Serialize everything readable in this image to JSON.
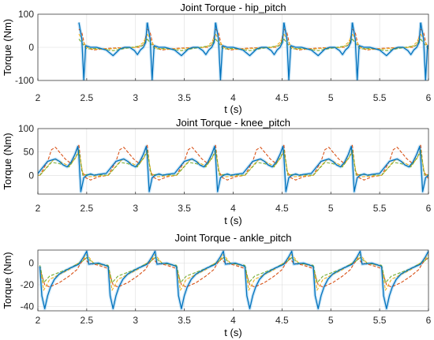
{
  "chart_data": [
    {
      "type": "line",
      "title": "Joint Torque - hip_pitch",
      "xlabel": "t (s)",
      "ylabel": "Torque (Nm)",
      "xlim": [
        2,
        6
      ],
      "ylim": [
        -100,
        100
      ],
      "xticks": [
        "2",
        "2.5",
        "3",
        "3.5",
        "4",
        "4.5",
        "5",
        "5.5",
        "6"
      ],
      "yticks": [
        "-100",
        "0",
        "100"
      ],
      "grid": true,
      "gait_period_s": 0.7,
      "stance_start_s": [
        2.42,
        3.12,
        3.82,
        4.52,
        5.22,
        5.92
      ],
      "series": [
        {
          "color": "#0072BD",
          "style": "solid",
          "x": [
            0.0,
            0.03,
            0.05,
            0.07,
            0.12,
            0.18,
            0.28,
            0.35,
            0.42,
            0.47,
            0.52,
            0.57,
            0.6,
            0.63,
            0.66,
            0.685,
            0.7
          ],
          "y": [
            75,
            25,
            -98,
            5,
            0,
            0,
            -8,
            -25,
            -5,
            0,
            0,
            -10,
            -22,
            -8,
            0,
            15,
            75
          ]
        },
        {
          "color": "#D95319",
          "style": "dashed",
          "x": [
            0.0,
            0.03,
            0.06,
            0.1,
            0.15,
            0.3,
            0.45,
            0.62,
            0.67,
            0.7
          ],
          "y": [
            55,
            45,
            5,
            -3,
            -8,
            -3,
            -1,
            0,
            10,
            55
          ]
        },
        {
          "color": "#EDB120",
          "style": "dashed",
          "x": [
            0.0,
            0.04,
            0.08,
            0.15,
            0.3,
            0.45,
            0.6,
            0.66,
            0.7
          ],
          "y": [
            40,
            20,
            0,
            -6,
            -5,
            -2,
            0,
            15,
            40
          ]
        },
        {
          "color": "#77AC30",
          "style": "dashed",
          "x": [
            0.0,
            0.04,
            0.08,
            0.2,
            0.35,
            0.5,
            0.65,
            0.7
          ],
          "y": [
            25,
            10,
            -5,
            -3,
            -10,
            -2,
            5,
            25
          ]
        }
      ]
    },
    {
      "type": "line",
      "title": "Joint Torque - knee_pitch",
      "xlabel": "t (s)",
      "ylabel": "Torque (Nm)",
      "xlim": [
        2,
        6
      ],
      "ylim": [
        -40,
        100
      ],
      "xticks": [
        "2",
        "2.5",
        "3",
        "3.5",
        "4",
        "4.5",
        "5",
        "5.5",
        "6"
      ],
      "yticks": [
        "0",
        "50",
        "100"
      ],
      "grid": true,
      "gait_period_s": 0.7,
      "stance_start_s": [
        1.72,
        2.42,
        3.12,
        3.82,
        4.52,
        5.22,
        5.92
      ],
      "series": [
        {
          "color": "#0072BD",
          "style": "solid",
          "x": [
            0.0,
            0.02,
            0.05,
            0.08,
            0.12,
            0.16,
            0.2,
            0.28,
            0.38,
            0.46,
            0.5,
            0.54,
            0.58,
            0.62,
            0.66,
            0.69,
            0.7
          ],
          "y": [
            40,
            -35,
            -5,
            0,
            3,
            0,
            2,
            4,
            30,
            35,
            30,
            22,
            18,
            28,
            45,
            62,
            40
          ]
        },
        {
          "color": "#D95319",
          "style": "dashed",
          "x": [
            0.0,
            0.03,
            0.07,
            0.12,
            0.2,
            0.3,
            0.38,
            0.42,
            0.46,
            0.5,
            0.56,
            0.62,
            0.66,
            0.7
          ],
          "y": [
            65,
            10,
            -5,
            -10,
            -3,
            0,
            30,
            55,
            60,
            50,
            35,
            25,
            45,
            65
          ]
        },
        {
          "color": "#EDB120",
          "style": "dashed",
          "x": [
            0.0,
            0.04,
            0.1,
            0.3,
            0.4,
            0.45,
            0.5,
            0.6,
            0.66,
            0.7
          ],
          "y": [
            50,
            5,
            -3,
            0,
            25,
            35,
            30,
            20,
            35,
            50
          ]
        },
        {
          "color": "#77AC30",
          "style": "dashed",
          "x": [
            0.0,
            0.04,
            0.1,
            0.3,
            0.42,
            0.5,
            0.6,
            0.67,
            0.7
          ],
          "y": [
            55,
            0,
            2,
            0,
            28,
            25,
            18,
            40,
            55
          ]
        }
      ]
    },
    {
      "type": "line",
      "title": "Joint Torque - ankle_pitch",
      "xlabel": "t (s)",
      "ylabel": "Torque (Nm)",
      "xlim": [
        2,
        6
      ],
      "ylim": [
        -44,
        12
      ],
      "xticks": [
        "2",
        "2.5",
        "3",
        "3.5",
        "4",
        "4.5",
        "5",
        "5.5",
        "6"
      ],
      "yticks": [
        "-40",
        "-20",
        "0"
      ],
      "grid": true,
      "gait_period_s": 0.7,
      "stance_start_s": [
        2.02,
        2.72,
        3.42,
        4.12,
        4.82,
        5.52
      ],
      "series": [
        {
          "color": "#0072BD",
          "style": "solid",
          "x": [
            0.0,
            0.02,
            0.05,
            0.08,
            0.11,
            0.15,
            0.2,
            0.3,
            0.4,
            0.45,
            0.48,
            0.5,
            0.6,
            0.7
          ],
          "y": [
            -3,
            -30,
            -42,
            -30,
            -22,
            -15,
            -10,
            -5,
            -1,
            6,
            11,
            -1,
            0,
            -3
          ]
        },
        {
          "color": "#D95319",
          "style": "dashed",
          "x": [
            0.0,
            0.05,
            0.1,
            0.2,
            0.3,
            0.38,
            0.42,
            0.46,
            0.5,
            0.6,
            0.7
          ],
          "y": [
            -5,
            -20,
            -22,
            -18,
            -12,
            -6,
            0,
            4,
            0,
            -2,
            -5
          ]
        },
        {
          "color": "#EDB120",
          "style": "dashed",
          "x": [
            0.0,
            0.04,
            0.1,
            0.3,
            0.44,
            0.48,
            0.55,
            0.7
          ],
          "y": [
            -3,
            -25,
            -15,
            -6,
            3,
            8,
            0,
            -3
          ]
        },
        {
          "color": "#77AC30",
          "style": "dashed",
          "x": [
            0.0,
            0.04,
            0.1,
            0.3,
            0.44,
            0.48,
            0.55,
            0.7
          ],
          "y": [
            -2,
            -18,
            -12,
            -5,
            2,
            5,
            0,
            -2
          ]
        }
      ]
    }
  ]
}
